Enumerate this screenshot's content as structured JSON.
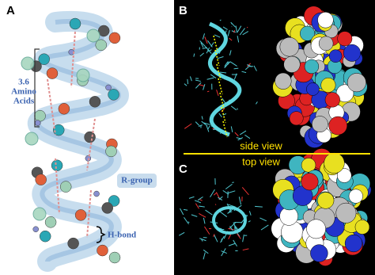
{
  "panels": {
    "a": {
      "label": "A",
      "repeat_label": [
        "3.6",
        "Amino",
        "Acids"
      ],
      "r_group": "R-group",
      "h_bond": "H-bond"
    },
    "b": {
      "label": "B",
      "caption": "side view"
    },
    "c": {
      "label": "C",
      "caption": "top view"
    }
  }
}
